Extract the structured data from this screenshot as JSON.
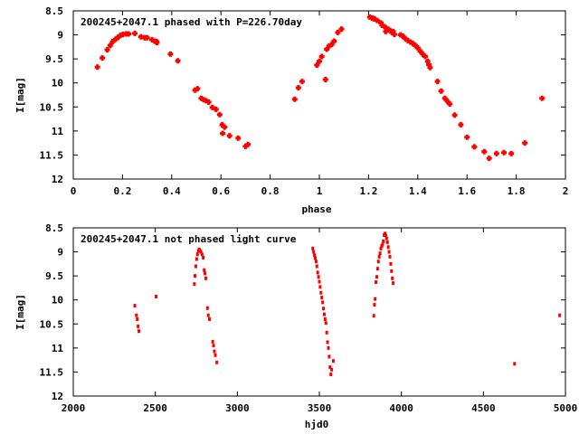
{
  "chart_data": [
    {
      "type": "scatter",
      "title": "200245+2047.1 phased with P=226.70day",
      "xlabel": "phase",
      "ylabel": "I[mag]",
      "xlim": [
        0,
        2
      ],
      "ylim": [
        8.5,
        12
      ],
      "y_inverted": true,
      "xticks": [
        "0",
        "0.2",
        "0.4",
        "0.6",
        "0.8",
        "1",
        "1.2",
        "1.4",
        "1.6",
        "1.8",
        "2"
      ],
      "yticks": [
        "8.5",
        "9",
        "9.5",
        "10",
        "10.5",
        "11",
        "11.5",
        "12"
      ],
      "grid": false,
      "marker_color": "#ff0000",
      "marker": "plus",
      "points": [
        [
          0.098,
          9.67
        ],
        [
          0.118,
          9.48
        ],
        [
          0.138,
          9.31
        ],
        [
          0.15,
          9.22
        ],
        [
          0.16,
          9.14
        ],
        [
          0.172,
          9.09
        ],
        [
          0.182,
          9.05
        ],
        [
          0.192,
          9.01
        ],
        [
          0.202,
          8.99
        ],
        [
          0.215,
          8.98
        ],
        [
          0.225,
          8.98
        ],
        [
          0.25,
          8.97
        ],
        [
          0.275,
          9.04
        ],
        [
          0.29,
          9.06
        ],
        [
          0.3,
          9.06
        ],
        [
          0.32,
          9.1
        ],
        [
          0.33,
          9.13
        ],
        [
          0.338,
          9.14
        ],
        [
          0.34,
          9.16
        ],
        [
          0.395,
          9.4
        ],
        [
          0.425,
          9.54
        ],
        [
          0.495,
          10.15
        ],
        [
          0.505,
          10.12
        ],
        [
          0.52,
          10.32
        ],
        [
          0.53,
          10.35
        ],
        [
          0.54,
          10.37
        ],
        [
          0.55,
          10.4
        ],
        [
          0.565,
          10.51
        ],
        [
          0.58,
          10.55
        ],
        [
          0.595,
          10.66
        ],
        [
          0.605,
          10.87
        ],
        [
          0.607,
          11.05
        ],
        [
          0.615,
          10.92
        ],
        [
          0.635,
          11.1
        ],
        [
          0.67,
          11.15
        ],
        [
          0.7,
          11.32
        ],
        [
          0.71,
          11.28
        ],
        [
          0.9,
          10.34
        ],
        [
          0.915,
          10.1
        ],
        [
          0.93,
          9.97
        ],
        [
          0.99,
          9.63
        ],
        [
          1.0,
          9.55
        ],
        [
          1.01,
          9.45
        ],
        [
          1.025,
          9.93
        ],
        [
          1.03,
          9.3
        ],
        [
          1.04,
          9.23
        ],
        [
          1.05,
          9.2
        ],
        [
          1.06,
          9.13
        ],
        [
          1.075,
          8.95
        ],
        [
          1.09,
          8.88
        ],
        [
          1.205,
          8.63
        ],
        [
          1.215,
          8.65
        ],
        [
          1.22,
          8.66
        ],
        [
          1.225,
          8.67
        ],
        [
          1.235,
          8.7
        ],
        [
          1.25,
          8.75
        ],
        [
          1.255,
          8.8
        ],
        [
          1.265,
          8.83
        ],
        [
          1.27,
          8.93
        ],
        [
          1.28,
          8.88
        ],
        [
          1.29,
          8.92
        ],
        [
          1.295,
          8.95
        ],
        [
          1.3,
          8.93
        ],
        [
          1.305,
          8.99
        ],
        [
          1.33,
          9.0
        ],
        [
          1.34,
          9.03
        ],
        [
          1.35,
          9.08
        ],
        [
          1.36,
          9.12
        ],
        [
          1.37,
          9.15
        ],
        [
          1.38,
          9.18
        ],
        [
          1.39,
          9.22
        ],
        [
          1.4,
          9.27
        ],
        [
          1.41,
          9.34
        ],
        [
          1.42,
          9.4
        ],
        [
          1.43,
          9.45
        ],
        [
          1.44,
          9.55
        ],
        [
          1.445,
          9.62
        ],
        [
          1.45,
          9.68
        ],
        [
          1.48,
          9.97
        ],
        [
          1.495,
          10.17
        ],
        [
          1.51,
          10.32
        ],
        [
          1.52,
          10.38
        ],
        [
          1.53,
          10.44
        ],
        [
          1.55,
          10.67
        ],
        [
          1.575,
          10.87
        ],
        [
          1.6,
          11.13
        ],
        [
          1.63,
          11.33
        ],
        [
          1.67,
          11.43
        ],
        [
          1.69,
          11.57
        ],
        [
          1.72,
          11.47
        ],
        [
          1.75,
          11.45
        ],
        [
          1.78,
          11.47
        ],
        [
          1.835,
          11.25
        ],
        [
          1.905,
          10.32
        ]
      ]
    },
    {
      "type": "scatter",
      "title": "200245+2047.1 not phased light curve",
      "xlabel": "hjd0",
      "ylabel": "I[mag]",
      "xlim": [
        2000,
        5000
      ],
      "ylim": [
        8.5,
        12
      ],
      "y_inverted": true,
      "xticks": [
        "2000",
        "2500",
        "3000",
        "3500",
        "4000",
        "4500",
        "5000"
      ],
      "yticks": [
        "8.5",
        "9",
        "9.5",
        "10",
        "10.5",
        "11",
        "11.5",
        "12"
      ],
      "grid": false,
      "marker_color": "#ff0000",
      "marker": "dot",
      "points": [
        [
          2375,
          10.12
        ],
        [
          2385,
          10.32
        ],
        [
          2390,
          10.4
        ],
        [
          2395,
          10.55
        ],
        [
          2400,
          10.65
        ],
        [
          2505,
          9.93
        ],
        [
          2738,
          9.67
        ],
        [
          2742,
          9.5
        ],
        [
          2747,
          9.3
        ],
        [
          2752,
          9.15
        ],
        [
          2757,
          9.05
        ],
        [
          2762,
          8.98
        ],
        [
          2767,
          8.95
        ],
        [
          2772,
          8.97
        ],
        [
          2778,
          9.0
        ],
        [
          2785,
          9.05
        ],
        [
          2792,
          9.12
        ],
        [
          2798,
          9.38
        ],
        [
          2803,
          9.45
        ],
        [
          2808,
          9.55
        ],
        [
          2818,
          10.17
        ],
        [
          2823,
          10.32
        ],
        [
          2830,
          10.4
        ],
        [
          2850,
          10.87
        ],
        [
          2855,
          10.95
        ],
        [
          2860,
          11.07
        ],
        [
          2866,
          11.15
        ],
        [
          2875,
          11.3
        ],
        [
          3460,
          8.93
        ],
        [
          3465,
          9.0
        ],
        [
          3470,
          9.07
        ],
        [
          3475,
          9.13
        ],
        [
          3480,
          9.2
        ],
        [
          3485,
          9.3
        ],
        [
          3490,
          9.43
        ],
        [
          3495,
          9.52
        ],
        [
          3500,
          9.62
        ],
        [
          3505,
          9.73
        ],
        [
          3510,
          9.85
        ],
        [
          3515,
          9.95
        ],
        [
          3520,
          10.05
        ],
        [
          3525,
          10.18
        ],
        [
          3530,
          10.3
        ],
        [
          3535,
          10.4
        ],
        [
          3540,
          10.48
        ],
        [
          3545,
          10.68
        ],
        [
          3550,
          10.88
        ],
        [
          3555,
          11.0
        ],
        [
          3560,
          11.18
        ],
        [
          3565,
          11.4
        ],
        [
          3570,
          11.55
        ],
        [
          3575,
          11.45
        ],
        [
          3585,
          11.27
        ],
        [
          3832,
          10.33
        ],
        [
          3836,
          10.1
        ],
        [
          3840,
          9.98
        ],
        [
          3845,
          9.63
        ],
        [
          3850,
          9.52
        ],
        [
          3855,
          9.35
        ],
        [
          3860,
          9.2
        ],
        [
          3865,
          9.1
        ],
        [
          3870,
          9.03
        ],
        [
          3875,
          8.93
        ],
        [
          3880,
          8.88
        ],
        [
          3885,
          8.85
        ],
        [
          3890,
          8.78
        ],
        [
          3895,
          8.65
        ],
        [
          3900,
          8.62
        ],
        [
          3905,
          8.66
        ],
        [
          3910,
          8.72
        ],
        [
          3915,
          8.8
        ],
        [
          3920,
          8.9
        ],
        [
          3925,
          9.0
        ],
        [
          3930,
          9.1
        ],
        [
          3935,
          9.25
        ],
        [
          3940,
          9.4
        ],
        [
          3945,
          9.55
        ],
        [
          3950,
          9.65
        ],
        [
          4690,
          11.33
        ],
        [
          4965,
          10.32
        ]
      ]
    }
  ]
}
